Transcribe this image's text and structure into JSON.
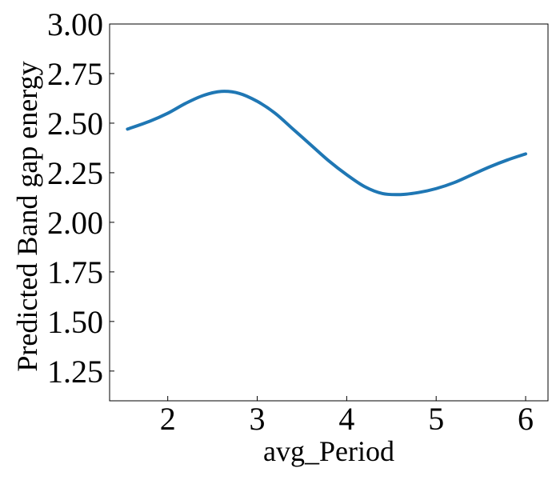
{
  "chart_data": {
    "type": "line",
    "title": "",
    "xlabel": "avg_Period",
    "ylabel": "Predicted Band gap energy",
    "xlim": [
      1.35,
      6.25
    ],
    "ylim": [
      1.1,
      3.0
    ],
    "x_ticks": [
      2,
      3,
      4,
      5,
      6
    ],
    "x_tick_labels": [
      "2",
      "3",
      "4",
      "5",
      "6"
    ],
    "y_ticks": [
      1.25,
      1.5,
      1.75,
      2.0,
      2.25,
      2.5,
      2.75,
      3.0
    ],
    "y_tick_labels": [
      "1.25",
      "1.50",
      "1.75",
      "2.00",
      "2.25",
      "2.50",
      "2.75",
      "3.00"
    ],
    "grid": false,
    "legend": "none",
    "series": [
      {
        "color": "#1f77b4",
        "x": [
          1.55,
          1.8,
          2.0,
          2.2,
          2.4,
          2.6,
          2.8,
          3.0,
          3.2,
          3.4,
          3.6,
          3.8,
          4.0,
          4.2,
          4.4,
          4.6,
          4.8,
          5.0,
          5.2,
          5.4,
          5.6,
          5.8,
          6.0
        ],
        "y": [
          2.47,
          2.51,
          2.55,
          2.6,
          2.64,
          2.66,
          2.65,
          2.61,
          2.55,
          2.47,
          2.39,
          2.31,
          2.24,
          2.18,
          2.145,
          2.14,
          2.15,
          2.17,
          2.2,
          2.24,
          2.28,
          2.315,
          2.345
        ]
      }
    ]
  }
}
